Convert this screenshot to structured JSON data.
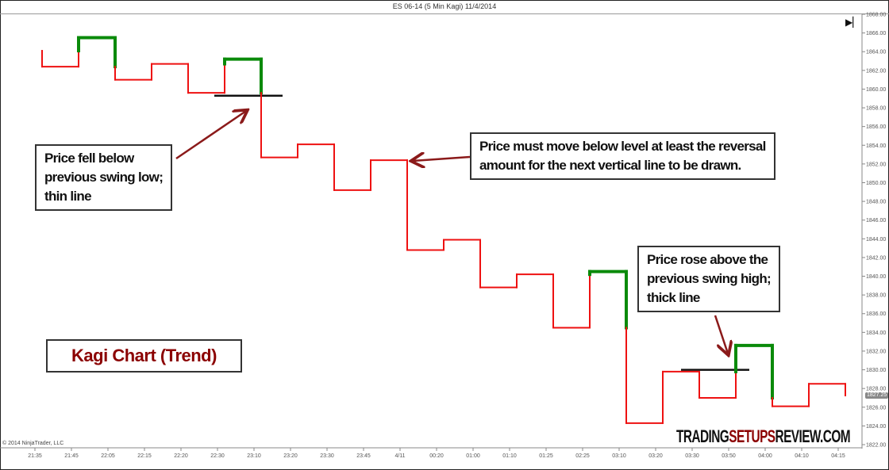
{
  "window_title": "ES 06-14 (5 Min Kagi)  11/4/2014",
  "copyright": "© 2014 NinjaTrader, LLC",
  "end_icon": "skip-to-end-icon",
  "colors": {
    "yang": "#0a8a0a",
    "yin": "#ee1111",
    "reference_line": "#111111",
    "arrow": "#8b1a1a",
    "title_text": "#8b0000"
  },
  "chart_data": {
    "type": "line",
    "subtype": "kagi",
    "title": "Kagi Chart (Trend)",
    "categories": [
      "21:35",
      "21:45",
      "22:05",
      "22:15",
      "22:20",
      "22:30",
      "23:10",
      "23:20",
      "23:30",
      "23:45",
      "4/11",
      "00:20",
      "01:00",
      "01:10",
      "01:25",
      "02:25",
      "03:10",
      "03:20",
      "03:30",
      "03:50",
      "04:00",
      "04:10",
      "04:15"
    ],
    "turning_prices": [
      1864.1,
      1862.4,
      1865.5,
      1861.0,
      1862.7,
      1859.6,
      1863.2,
      1852.7,
      1854.1,
      1849.2,
      1852.4,
      1842.8,
      1843.9,
      1838.8,
      1840.2,
      1834.5,
      1840.5,
      1824.3,
      1829.8,
      1827.0,
      1832.6,
      1826.1,
      1828.5,
      1827.25
    ],
    "ylim": [
      1822,
      1868
    ],
    "yticks": [
      "1822.00",
      "1824.00",
      "1826.00",
      "1828.00",
      "1830.00",
      "1832.00",
      "1834.00",
      "1836.00",
      "1838.00",
      "1840.00",
      "1842.00",
      "1844.00",
      "1846.00",
      "1848.00",
      "1850.00",
      "1852.00",
      "1854.00",
      "1856.00",
      "1858.00",
      "1860.00",
      "1862.00",
      "1864.00",
      "1866.00",
      "1868.00"
    ],
    "last_price": "1827.25",
    "grid": false,
    "reference_levels": [
      1859.3,
      1830.0
    ],
    "annotations": [
      "Price fell below previous swing low; thin line",
      "Price must move below level at least the reversal amount for the next vertical line to be drawn.",
      "Price rose above the previous swing high; thick line"
    ]
  },
  "notes": {
    "fell_below": [
      "Price fell below",
      "previous swing low;",
      "thin line"
    ],
    "must_move": [
      "Price must move below level at least the reversal",
      "amount for the next vertical line to be drawn."
    ],
    "rose_above": [
      "Price rose above the",
      "previous swing high;",
      "thick line"
    ]
  },
  "watermark": {
    "part1": "TRADING",
    "part2": "SETUPS",
    "part3": "REVIEW.COM"
  }
}
